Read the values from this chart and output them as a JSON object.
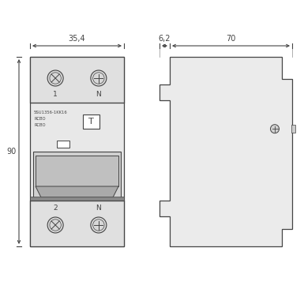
{
  "bg_color": "#ffffff",
  "line_color": "#555555",
  "dark_line": "#444444",
  "body_fill": "#e8e8e8",
  "section_fill": "#e0e0e0",
  "mid_fill": "#d0d0d0",
  "dim_color": "#444444",
  "dim_35_4": "35,4",
  "dim_6_2": "6,2",
  "dim_70": "70",
  "dim_90": "90",
  "label_1": "1",
  "label_N_top": "N",
  "label_2": "2",
  "label_N_bot": "N",
  "label_T": "T",
  "text_line1": "5SU1356-1KK16",
  "text_line2": "RCBO",
  "text_line3": "RCBO"
}
